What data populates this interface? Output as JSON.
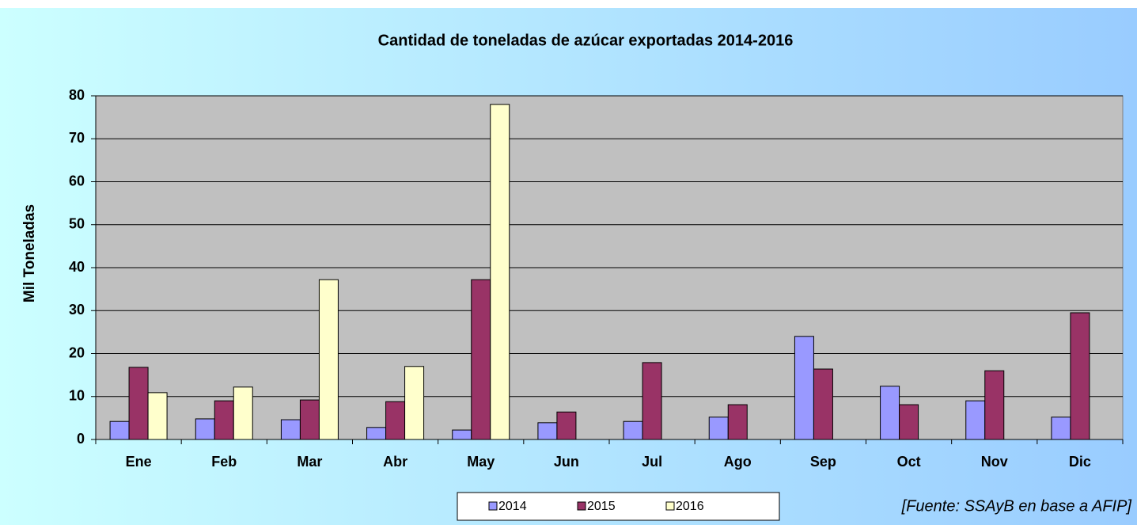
{
  "chart_data": {
    "type": "bar",
    "title": "Cantidad de toneladas de azúcar exportadas 2014-2016",
    "y_label": "Mil Toneladas",
    "source": "[Fuente: SSAyB en base a AFIP]",
    "categories": [
      "Ene",
      "Feb",
      "Mar",
      "Abr",
      "May",
      "Jun",
      "Jul",
      "Ago",
      "Sep",
      "Oct",
      "Nov",
      "Dic"
    ],
    "series": [
      {
        "name": "2014",
        "color": "#9999ff",
        "values": [
          4.2,
          4.8,
          4.6,
          2.8,
          2.2,
          3.9,
          4.2,
          5.2,
          24.0,
          12.4,
          9.0,
          5.2
        ]
      },
      {
        "name": "2015",
        "color": "#993366",
        "values": [
          16.8,
          9.0,
          9.2,
          8.8,
          37.2,
          6.4,
          17.9,
          8.1,
          16.4,
          8.1,
          16.0,
          29.5
        ]
      },
      {
        "name": "2016",
        "color": "#ffffcc",
        "values": [
          10.9,
          12.2,
          37.2,
          17.0,
          78.0,
          null,
          null,
          null,
          null,
          null,
          null,
          null
        ]
      }
    ],
    "ylim": [
      0,
      80
    ],
    "yticks": [
      0,
      10,
      20,
      30,
      40,
      50,
      60,
      70,
      80
    ],
    "grid": true,
    "plot_background": "#c0c0c0",
    "legend": "bottom"
  }
}
